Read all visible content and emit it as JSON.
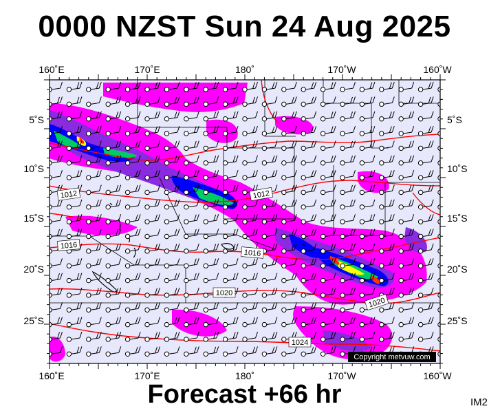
{
  "header": {
    "title": "0000 NZST Sun 24 Aug 2025"
  },
  "footer": {
    "forecast": "Forecast +66 hr",
    "tag": "IM2"
  },
  "map": {
    "copyright": "Copyright metvuw.com",
    "top_lon_labels": [
      "160˚E",
      "170˚E",
      "180˚",
      "170˚W",
      "160˚W"
    ],
    "bottom_lon_labels": [
      "160˚E",
      "170˚E",
      "180˚",
      "170˚W",
      "160˚W"
    ],
    "lat_labels": [
      "5˚S",
      "10˚S",
      "15˚S",
      "20˚S",
      "25˚S"
    ],
    "isobar_labels": [
      "1012",
      "1012",
      "1016",
      "1016",
      "1020",
      "1020",
      "1024"
    ],
    "colors": {
      "background": "#e8e8fc",
      "isobar": "#ff0000",
      "rain_light": "#ff00ff",
      "rain_mid": "#8a2be2",
      "rain_heavy": "#0000ff",
      "rain_very_heavy": "#00cc66",
      "rain_extreme": "#ff3300"
    }
  }
}
